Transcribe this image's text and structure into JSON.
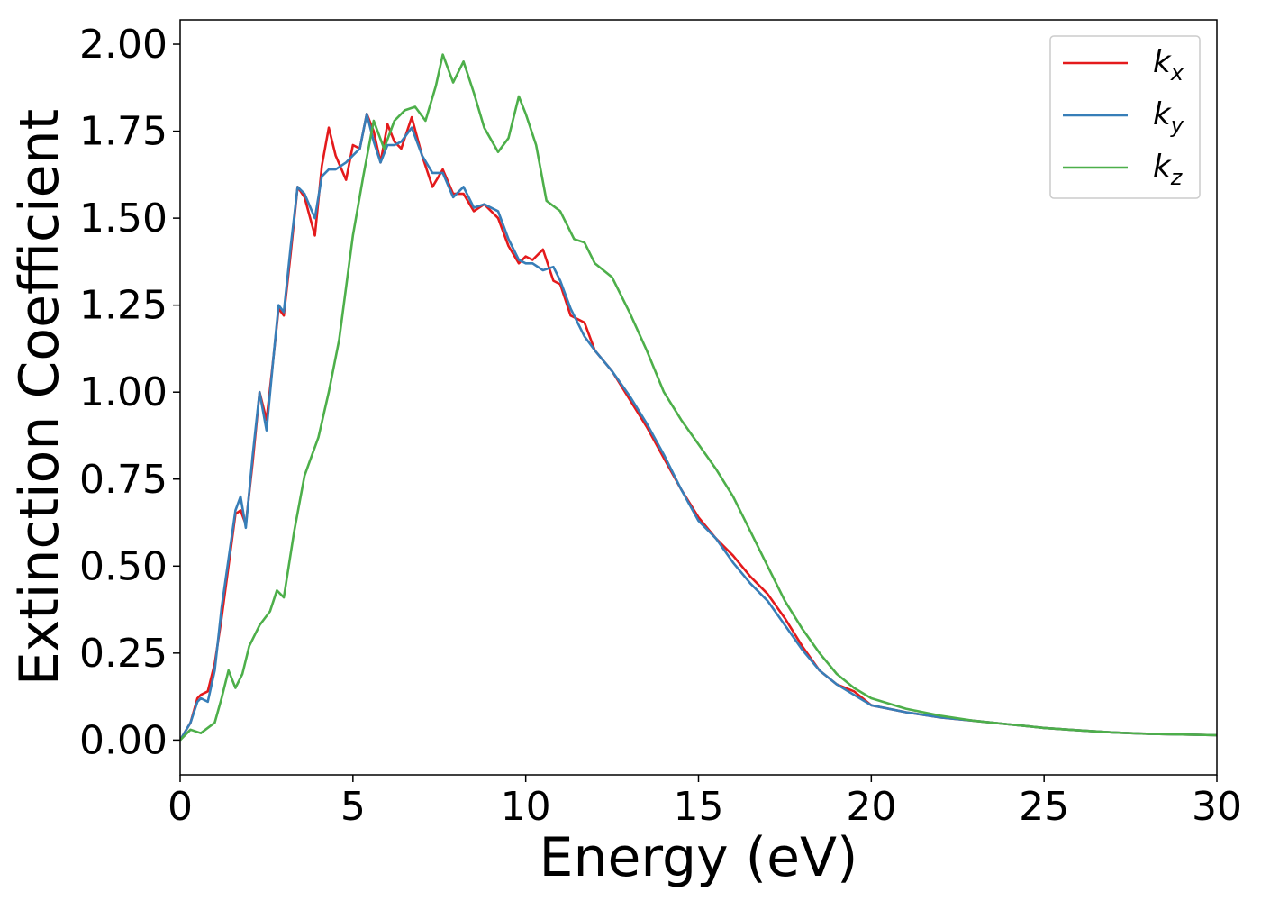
{
  "chart_data": {
    "type": "line",
    "title": "",
    "xlabel": "Energy (eV)",
    "ylabel": "Extinction Coefficient",
    "xlim": [
      0,
      30
    ],
    "ylim": [
      -0.1,
      2.07
    ],
    "xticks": [
      0,
      5,
      10,
      15,
      20,
      25,
      30
    ],
    "xtick_labels": [
      "0",
      "5",
      "10",
      "15",
      "20",
      "25",
      "30"
    ],
    "yticks": [
      0,
      0.25,
      0.5,
      0.75,
      1.0,
      1.25,
      1.5,
      1.75,
      2.0
    ],
    "ytick_labels": [
      "0.00",
      "0.25",
      "0.50",
      "0.75",
      "1.00",
      "1.25",
      "1.50",
      "1.75",
      "2.00"
    ],
    "grid": false,
    "legend_position": "top-right",
    "series": [
      {
        "name": "k_x",
        "legend_base": "k",
        "legend_sub": "x",
        "color": "#e41a1c",
        "x": [
          0,
          0.3,
          0.5,
          0.6,
          0.8,
          1.0,
          1.2,
          1.4,
          1.6,
          1.75,
          1.9,
          2.1,
          2.3,
          2.5,
          2.7,
          2.85,
          3.0,
          3.2,
          3.4,
          3.6,
          3.9,
          4.1,
          4.3,
          4.5,
          4.8,
          5.0,
          5.2,
          5.4,
          5.6,
          5.8,
          6.0,
          6.2,
          6.4,
          6.7,
          7.0,
          7.3,
          7.6,
          7.9,
          8.2,
          8.5,
          8.8,
          9.2,
          9.5,
          9.8,
          10.0,
          10.2,
          10.5,
          10.8,
          11.0,
          11.3,
          11.7,
          12.0,
          12.5,
          13.0,
          13.5,
          14.0,
          14.5,
          15.0,
          15.5,
          16.0,
          16.5,
          17.0,
          17.5,
          18.0,
          18.5,
          19.0,
          19.5,
          20.0,
          21.0,
          22.0,
          23.0,
          24.0,
          25.0,
          26.0,
          27.0,
          28.0,
          29.0,
          30.0
        ],
        "y": [
          0.0,
          0.05,
          0.12,
          0.13,
          0.14,
          0.22,
          0.35,
          0.5,
          0.65,
          0.66,
          0.62,
          0.8,
          1.0,
          0.92,
          1.1,
          1.24,
          1.22,
          1.4,
          1.59,
          1.56,
          1.45,
          1.65,
          1.76,
          1.68,
          1.61,
          1.71,
          1.7,
          1.8,
          1.75,
          1.66,
          1.77,
          1.72,
          1.7,
          1.79,
          1.68,
          1.59,
          1.64,
          1.57,
          1.57,
          1.52,
          1.54,
          1.5,
          1.42,
          1.37,
          1.39,
          1.38,
          1.41,
          1.32,
          1.31,
          1.22,
          1.2,
          1.12,
          1.06,
          0.98,
          0.9,
          0.81,
          0.72,
          0.64,
          0.58,
          0.53,
          0.47,
          0.42,
          0.35,
          0.27,
          0.2,
          0.16,
          0.14,
          0.1,
          0.08,
          0.065,
          0.055,
          0.045,
          0.035,
          0.028,
          0.022,
          0.018,
          0.016,
          0.014
        ]
      },
      {
        "name": "k_y",
        "legend_base": "k",
        "legend_sub": "y",
        "color": "#377eb8",
        "x": [
          0,
          0.3,
          0.5,
          0.6,
          0.8,
          1.0,
          1.2,
          1.4,
          1.6,
          1.75,
          1.9,
          2.1,
          2.3,
          2.5,
          2.7,
          2.85,
          3.0,
          3.2,
          3.4,
          3.6,
          3.9,
          4.1,
          4.3,
          4.5,
          4.8,
          5.0,
          5.2,
          5.4,
          5.6,
          5.8,
          6.0,
          6.2,
          6.4,
          6.7,
          7.0,
          7.3,
          7.6,
          7.9,
          8.2,
          8.5,
          8.8,
          9.2,
          9.5,
          9.8,
          10.0,
          10.2,
          10.5,
          10.8,
          11.0,
          11.3,
          11.7,
          12.0,
          12.5,
          13.0,
          13.5,
          14.0,
          14.5,
          15.0,
          15.5,
          16.0,
          16.5,
          17.0,
          17.5,
          18.0,
          18.5,
          19.0,
          19.5,
          20.0,
          21.0,
          22.0,
          23.0,
          24.0,
          25.0,
          26.0,
          27.0,
          28.0,
          29.0,
          30.0
        ],
        "y": [
          0.0,
          0.05,
          0.11,
          0.12,
          0.11,
          0.2,
          0.38,
          0.52,
          0.66,
          0.7,
          0.61,
          0.82,
          1.0,
          0.89,
          1.1,
          1.25,
          1.23,
          1.42,
          1.59,
          1.57,
          1.5,
          1.62,
          1.64,
          1.64,
          1.66,
          1.68,
          1.7,
          1.8,
          1.72,
          1.66,
          1.71,
          1.71,
          1.72,
          1.76,
          1.68,
          1.63,
          1.63,
          1.56,
          1.59,
          1.53,
          1.54,
          1.52,
          1.44,
          1.38,
          1.37,
          1.37,
          1.35,
          1.36,
          1.32,
          1.24,
          1.16,
          1.12,
          1.06,
          0.99,
          0.91,
          0.82,
          0.72,
          0.63,
          0.58,
          0.51,
          0.45,
          0.4,
          0.33,
          0.26,
          0.2,
          0.16,
          0.13,
          0.1,
          0.08,
          0.065,
          0.055,
          0.045,
          0.035,
          0.028,
          0.022,
          0.018,
          0.016,
          0.014
        ]
      },
      {
        "name": "k_z",
        "legend_base": "k",
        "legend_sub": "z",
        "color": "#4daf4a",
        "x": [
          0,
          0.3,
          0.6,
          1.0,
          1.2,
          1.4,
          1.6,
          1.8,
          2.0,
          2.3,
          2.6,
          2.8,
          3.0,
          3.3,
          3.6,
          4.0,
          4.3,
          4.6,
          5.0,
          5.3,
          5.6,
          5.9,
          6.2,
          6.5,
          6.8,
          7.1,
          7.4,
          7.6,
          7.9,
          8.2,
          8.5,
          8.8,
          9.2,
          9.5,
          9.8,
          10.0,
          10.3,
          10.6,
          11.0,
          11.4,
          11.7,
          12.0,
          12.5,
          13.0,
          13.5,
          14.0,
          14.5,
          15.0,
          15.5,
          16.0,
          16.5,
          17.0,
          17.5,
          18.0,
          18.5,
          19.0,
          19.5,
          20.0,
          21.0,
          22.0,
          23.0,
          24.0,
          25.0,
          26.0,
          27.0,
          28.0,
          29.0,
          30.0
        ],
        "y": [
          0.0,
          0.03,
          0.02,
          0.05,
          0.12,
          0.2,
          0.15,
          0.19,
          0.27,
          0.33,
          0.37,
          0.43,
          0.41,
          0.6,
          0.76,
          0.87,
          1.0,
          1.15,
          1.45,
          1.62,
          1.78,
          1.7,
          1.78,
          1.81,
          1.82,
          1.78,
          1.88,
          1.97,
          1.89,
          1.95,
          1.86,
          1.76,
          1.69,
          1.73,
          1.85,
          1.8,
          1.71,
          1.55,
          1.52,
          1.44,
          1.43,
          1.37,
          1.33,
          1.23,
          1.12,
          1.0,
          0.92,
          0.85,
          0.78,
          0.7,
          0.6,
          0.5,
          0.4,
          0.32,
          0.25,
          0.19,
          0.15,
          0.12,
          0.09,
          0.07,
          0.055,
          0.045,
          0.035,
          0.028,
          0.022,
          0.018,
          0.016,
          0.014
        ]
      }
    ]
  }
}
